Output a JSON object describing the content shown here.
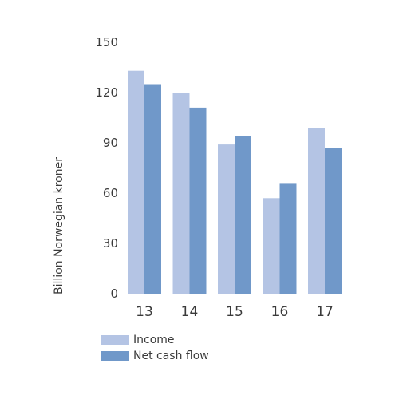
{
  "chart_data": {
    "type": "bar",
    "categories": [
      "13",
      "14",
      "15",
      "16",
      "17"
    ],
    "series": [
      {
        "name": "Income",
        "values": [
          133,
          120,
          89,
          57,
          99
        ],
        "color": "#b4c4e4"
      },
      {
        "name": "Net cash flow",
        "values": [
          125,
          111,
          94,
          66,
          87
        ],
        "color": "#7098c9"
      }
    ],
    "title": "",
    "xlabel": "",
    "ylabel": "Billion Norwegian kroner",
    "ylim": [
      0,
      150
    ],
    "yticks": [
      "0",
      "30",
      "60",
      "90",
      "120",
      "150"
    ],
    "grid": false,
    "legend_position": "bottom-left"
  }
}
